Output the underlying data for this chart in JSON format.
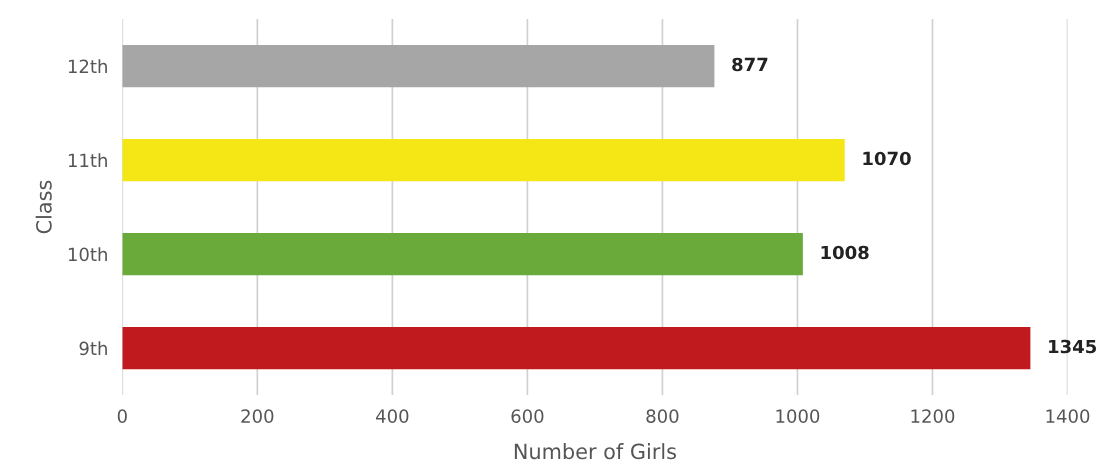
{
  "chart_data": {
    "type": "bar",
    "orientation": "horizontal",
    "xlabel": "Number of Girls",
    "ylabel": "Class",
    "categories": [
      "12th",
      "11th",
      "10th",
      "9th"
    ],
    "values": [
      877,
      1070,
      1008,
      1345
    ],
    "colors": [
      "#a6a6a6",
      "#f5e616",
      "#6aaa3a",
      "#c0191e"
    ],
    "xlim": [
      0,
      1400
    ],
    "xticks": [
      0,
      200,
      400,
      600,
      800,
      1000,
      1200,
      1400
    ],
    "grid": "x",
    "data_labels": true
  }
}
